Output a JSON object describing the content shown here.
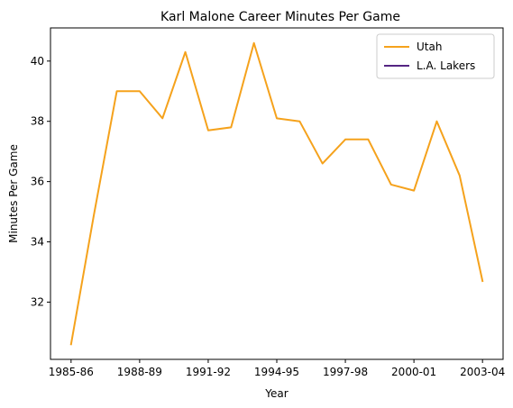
{
  "chart_data": {
    "type": "line",
    "title": "Karl Malone Career Minutes Per Game",
    "xlabel": "Year",
    "ylabel": "Minutes Per Game",
    "x_tick_labels": [
      "1985-86",
      "1988-89",
      "1991-92",
      "1994-95",
      "1997-98",
      "2000-01",
      "2003-04"
    ],
    "x_tick_positions": [
      0,
      3,
      6,
      9,
      12,
      15,
      18
    ],
    "xlim": [
      -0.9,
      18.9
    ],
    "y_ticks": [
      32,
      34,
      36,
      38,
      40
    ],
    "ylim": [
      30.1,
      41.1
    ],
    "grid": false,
    "legend_position": "top-right",
    "series": [
      {
        "name": "Utah",
        "color": "#f5a21c",
        "x": [
          0,
          1,
          2,
          3,
          4,
          5,
          6,
          7,
          8,
          9,
          10,
          11,
          12,
          13,
          14,
          15,
          16,
          17,
          18
        ],
        "y": [
          30.6,
          34.9,
          39.0,
          39.0,
          38.1,
          40.3,
          37.7,
          37.8,
          40.6,
          38.1,
          38.0,
          36.6,
          37.4,
          37.4,
          35.9,
          35.7,
          38.0,
          36.2,
          32.7
        ]
      },
      {
        "name": "L.A. Lakers",
        "color": "#552583",
        "x": [],
        "y": []
      }
    ]
  }
}
